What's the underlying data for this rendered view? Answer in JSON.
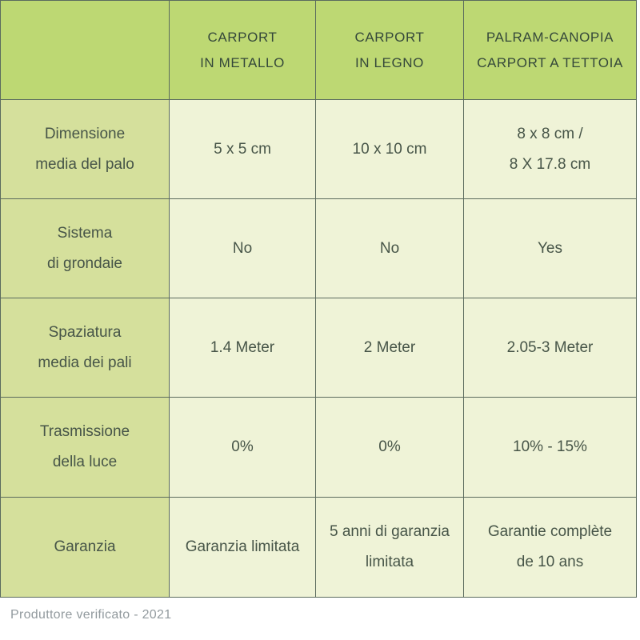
{
  "chart_data": {
    "type": "table",
    "title": "Carport comparison table",
    "columns": [
      "",
      "CARPORT IN METALLO",
      "CARPORT IN LEGNO",
      "PALRAM-CANOPIA CARPORT A TETTOIA"
    ],
    "rows": [
      {
        "label": "Dimensione media del palo",
        "values": [
          "5 x 5 cm",
          "10 x 10 cm",
          "8 x 8 cm / 8 X 17.8 cm"
        ]
      },
      {
        "label": "Sistema di grondaie",
        "values": [
          "No",
          "No",
          "Yes"
        ]
      },
      {
        "label": "Spaziatura media dei pali",
        "values": [
          "1.4 Meter",
          "2 Meter",
          "2.05-3 Meter"
        ]
      },
      {
        "label": "Trasmissione della luce",
        "values": [
          "0%",
          "0%",
          "10% - 15%"
        ]
      },
      {
        "label": "Garanzia",
        "values": [
          "Garanzia limitata",
          "5 anni di garanzia limitata",
          "Garantie complète de 10 ans"
        ]
      }
    ]
  },
  "header": {
    "col0": "",
    "col1": [
      "CARPORT",
      "IN METALLO"
    ],
    "col2": [
      "CARPORT",
      "IN LEGNO"
    ],
    "col3": [
      "PALRAM-CANOPIA",
      "CARPORT A TETTOIA"
    ]
  },
  "rows": [
    {
      "label": [
        "Dimensione",
        "media del palo"
      ],
      "values": [
        [
          "5 x 5 cm"
        ],
        [
          "10 x 10 cm"
        ],
        [
          "8 x 8 cm /",
          "8 X 17.8 cm"
        ]
      ]
    },
    {
      "label": [
        "Sistema",
        "di grondaie"
      ],
      "values": [
        [
          "No"
        ],
        [
          "No"
        ],
        [
          "Yes"
        ]
      ]
    },
    {
      "label": [
        "Spaziatura",
        "media dei pali"
      ],
      "values": [
        [
          "1.4 Meter"
        ],
        [
          "2 Meter"
        ],
        [
          "2.05-3 Meter"
        ]
      ]
    },
    {
      "label": [
        "Trasmissione",
        "della luce"
      ],
      "values": [
        [
          "0%"
        ],
        [
          "0%"
        ],
        [
          "10% - 15%"
        ]
      ]
    },
    {
      "label": [
        "Garanzia"
      ],
      "values": [
        [
          "Garanzia limitata"
        ],
        [
          "5 anni di garanzia",
          "limitata"
        ],
        [
          "Garantie complète",
          "de 10 ans"
        ]
      ]
    }
  ],
  "footer": {
    "text": "Produttore verificato - 2021"
  },
  "colors": {
    "header_bg": "#bdd873",
    "label_bg": "#d5e09c",
    "cell_bg": "#eff3d7",
    "border": "#5b6b5e",
    "header_text": "#35483a",
    "body_text": "#475548",
    "footer_text": "#929a9e",
    "page_bg": "#ffffff"
  }
}
